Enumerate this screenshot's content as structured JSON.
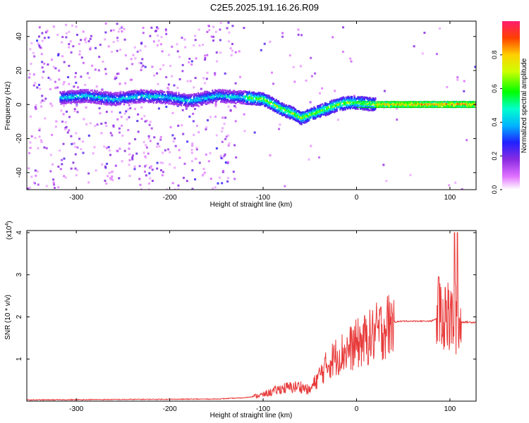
{
  "figure": {
    "title": "C2E5.2025.191.16.26.R09"
  },
  "chart_data": [
    {
      "type": "heatmap",
      "xlabel": "Height of straight line (km)",
      "ylabel": "Frequency (Hz)",
      "xlim": [
        -353,
        128
      ],
      "ylim": [
        -50,
        49
      ],
      "xticks": [
        -300,
        -200,
        -100,
        0,
        100
      ],
      "yticks": [
        -40,
        -20,
        0,
        20,
        40
      ],
      "colorbar": {
        "label": "Normalized spectral amplitude",
        "range": [
          0,
          1
        ],
        "ticks": [
          0.0,
          0.2,
          0.4,
          0.6,
          0.8
        ],
        "tick_labels": [
          "0.0",
          "0.2",
          "0.4",
          "0.6",
          "0.8"
        ]
      },
      "ridge": {
        "x": [
          -315,
          -290,
          -260,
          -230,
          -200,
          -180,
          -150,
          -120,
          -100,
          -90,
          -80,
          -70,
          -60,
          -50,
          -40,
          -30,
          -20,
          -10,
          0,
          20,
          60,
          100,
          128
        ],
        "y": [
          4,
          5,
          3,
          5,
          4,
          2,
          5,
          4,
          3,
          0,
          -3,
          -5,
          -8,
          -6,
          -4,
          -2,
          0,
          1,
          1,
          0,
          0,
          0,
          0
        ]
      },
      "grid": false
    },
    {
      "type": "line",
      "xlabel": "Height of straight line (km)",
      "ylabel": "SNR (10 * v/v)",
      "y_multiplier": "(x10",
      "y_multiplier_exp": "4",
      "xlim": [
        -353,
        128
      ],
      "ylim": [
        0,
        4.05
      ],
      "xticks": [
        -300,
        -200,
        -100,
        0,
        100
      ],
      "yticks": [
        1,
        2,
        3,
        4
      ],
      "envelope": {
        "x": [
          -353,
          -150,
          -120,
          -100,
          -80,
          -60,
          -50,
          -40,
          -30,
          -20,
          -10,
          0,
          10,
          20,
          30,
          40,
          50,
          80,
          85,
          95,
          100,
          105,
          110,
          128
        ],
        "y": [
          0.03,
          0.05,
          0.08,
          0.15,
          0.3,
          0.35,
          0.25,
          0.6,
          0.9,
          1.1,
          1.2,
          1.35,
          1.45,
          1.6,
          1.75,
          1.88,
          1.9,
          1.9,
          1.95,
          2.0,
          1.9,
          2.0,
          1.88,
          1.87
        ]
      },
      "peaks": [
        {
          "x": 88,
          "y": 2.95
        },
        {
          "x": 95,
          "y": 2.7
        },
        {
          "x": 105,
          "y": 4.0
        },
        {
          "x": 108,
          "y": 4.0
        }
      ],
      "series": [
        {
          "name": "",
          "color": "#e83a3a"
        }
      ],
      "grid": false
    }
  ]
}
